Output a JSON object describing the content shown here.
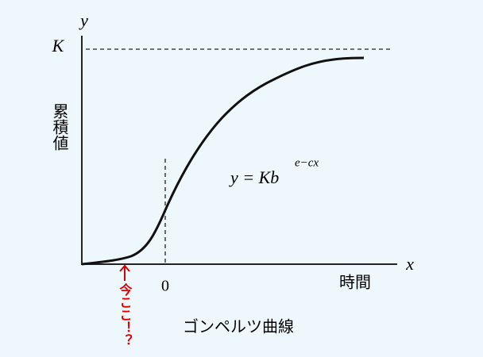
{
  "axes": {
    "y_label": "y",
    "x_label": "x",
    "k_label": "K",
    "origin_label": "0",
    "y_title": "累積値",
    "x_title": "時間"
  },
  "formula": {
    "base": "y = Kb",
    "exponent": "e−cx"
  },
  "caption": "ゴンペルツ曲線",
  "annotation": "今ここ！？"
}
